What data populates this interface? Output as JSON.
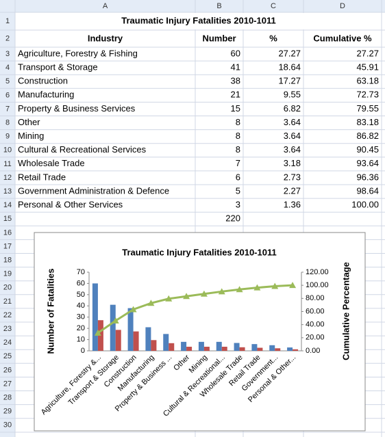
{
  "sheet": {
    "columns": [
      "A",
      "B",
      "C",
      "D"
    ],
    "row_numbers": [
      1,
      2,
      3,
      4,
      5,
      6,
      7,
      8,
      9,
      10,
      11,
      12,
      13,
      14,
      15,
      16,
      17,
      18,
      19,
      20,
      21,
      22,
      23,
      24,
      25,
      26,
      27,
      28,
      29,
      30
    ],
    "title": "Traumatic Injury Fatalities 2010-1011",
    "header": [
      "Industry",
      "Number",
      "%",
      "Cumulative %"
    ],
    "rows": [
      [
        "Agriculture, Forestry & Fishing",
        "60",
        "27.27",
        "27.27"
      ],
      [
        "Transport & Storage",
        "41",
        "18.64",
        "45.91"
      ],
      [
        "Construction",
        "38",
        "17.27",
        "63.18"
      ],
      [
        "Manufacturing",
        "21",
        "9.55",
        "72.73"
      ],
      [
        "Property & Business Services",
        "15",
        "6.82",
        "79.55"
      ],
      [
        "Other",
        "8",
        "3.64",
        "83.18"
      ],
      [
        "Mining",
        "8",
        "3.64",
        "86.82"
      ],
      [
        "Cultural & Recreational Services",
        "8",
        "3.64",
        "90.45"
      ],
      [
        "Wholesale Trade",
        "7",
        "3.18",
        "93.64"
      ],
      [
        "Retail Trade",
        "6",
        "2.73",
        "96.36"
      ],
      [
        "Government Administration & Defence",
        "5",
        "2.27",
        "98.64"
      ],
      [
        "Personal & Other Services",
        "3",
        "1.36",
        "100.00"
      ]
    ],
    "total": "220"
  },
  "chart_data": {
    "type": "bar",
    "title": "Traumatic Injury Fatalities 2010-1011",
    "y_label": "Number of Fatalities",
    "y2_label": "Cumulative Percentage",
    "categories": [
      "Agriculture, Forestry &...",
      "Transport & Storage",
      "Construction",
      "Manufacturing",
      "Property & Business ...",
      "Other",
      "Mining",
      "Cultural & Recreational...",
      "Wholesale Trade",
      "Retail Trade",
      "Government...",
      "Personal & Other..."
    ],
    "series": [
      {
        "type": "bar",
        "color": "#4f81bd",
        "values": [
          60,
          41,
          38,
          21,
          15,
          8,
          8,
          8,
          7,
          6,
          5,
          3
        ]
      },
      {
        "type": "bar",
        "color": "#c0504d",
        "values": [
          27.27,
          18.64,
          17.27,
          9.55,
          6.82,
          3.64,
          3.64,
          3.64,
          3.18,
          2.73,
          2.27,
          1.36
        ]
      },
      {
        "type": "line",
        "axis": "y2",
        "color": "#9bbb59",
        "values": [
          27.27,
          45.91,
          63.18,
          72.73,
          79.55,
          83.18,
          86.82,
          90.45,
          93.64,
          96.36,
          98.64,
          100.0
        ]
      }
    ],
    "ylim": [
      0,
      70
    ],
    "yticks": [
      0,
      10,
      20,
      30,
      40,
      50,
      60,
      70
    ],
    "y2lim": [
      0,
      120
    ],
    "y2ticks": [
      {
        "value": 0,
        "label": "0.00"
      },
      {
        "value": 20,
        "label": "20.00"
      },
      {
        "value": 40,
        "label": "40.00"
      },
      {
        "value": 60,
        "label": "60.00"
      },
      {
        "value": 80,
        "label": "80.00"
      },
      {
        "value": 100,
        "label": "100.00"
      },
      {
        "value": 120,
        "label": "120.00"
      }
    ]
  }
}
